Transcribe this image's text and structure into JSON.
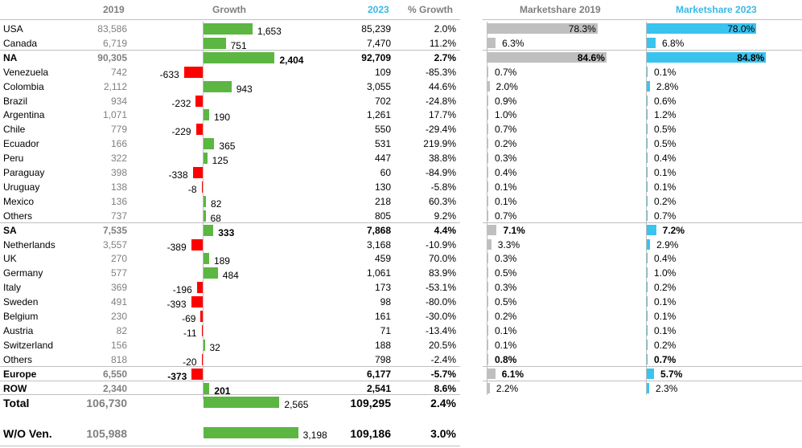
{
  "colors": {
    "positive": "#5bb642",
    "negative": "#ff0000",
    "ms2019": "#bfbfbf",
    "ms2023": "#39c3ef",
    "header_blue": "#39b8e6",
    "muted": "#7f7f7f"
  },
  "headers": {
    "y2019": "2019",
    "growth": "Growth",
    "y2023": "2023",
    "pct_growth": "% Growth",
    "ms2019": "Marketshare 2019",
    "ms2023": "Marketshare 2023"
  },
  "chart_data": {
    "type": "table",
    "columns": [
      "",
      "2019",
      "Growth",
      "2023",
      "% Growth",
      "Marketshare 2019",
      "Marketshare 2023"
    ],
    "rows": [
      {
        "name": "USA",
        "v2019": "83,586",
        "growth": 1653,
        "growth_label": "1,653",
        "v2023": "85,239",
        "pct": "2.0%",
        "ms2019": 78.3,
        "ms2019_label": "78.3%",
        "ms2023": 78.0,
        "ms2023_label": "78.0%"
      },
      {
        "name": "Canada",
        "v2019": "6,719",
        "growth": 751,
        "growth_label": "751",
        "v2023": "7,470",
        "pct": "11.2%",
        "ms2019": 6.3,
        "ms2019_label": "6.3%",
        "ms2023": 6.8,
        "ms2023_label": "6.8%"
      },
      {
        "name": "NA",
        "v2019": "90,305",
        "growth": 2404,
        "growth_label": "2,404",
        "v2023": "92,709",
        "pct": "2.7%",
        "ms2019": 84.6,
        "ms2019_label": "84.6%",
        "ms2023": 84.8,
        "ms2023_label": "84.8%",
        "bold": true,
        "sep": true
      },
      {
        "name": "Venezuela",
        "v2019": "742",
        "growth": -633,
        "growth_label": "-633",
        "v2023": "109",
        "pct": "-85.3%",
        "ms2019": 0.7,
        "ms2019_label": "0.7%",
        "ms2023": 0.1,
        "ms2023_label": "0.1%"
      },
      {
        "name": "Colombia",
        "v2019": "2,112",
        "growth": 943,
        "growth_label": "943",
        "v2023": "3,055",
        "pct": "44.6%",
        "ms2019": 2.0,
        "ms2019_label": "2.0%",
        "ms2023": 2.8,
        "ms2023_label": "2.8%"
      },
      {
        "name": "Brazil",
        "v2019": "934",
        "growth": -232,
        "growth_label": "-232",
        "v2023": "702",
        "pct": "-24.8%",
        "ms2019": 0.9,
        "ms2019_label": "0.9%",
        "ms2023": 0.6,
        "ms2023_label": "0.6%"
      },
      {
        "name": "Argentina",
        "v2019": "1,071",
        "growth": 190,
        "growth_label": "190",
        "v2023": "1,261",
        "pct": "17.7%",
        "ms2019": 1.0,
        "ms2019_label": "1.0%",
        "ms2023": 1.2,
        "ms2023_label": "1.2%"
      },
      {
        "name": "Chile",
        "v2019": "779",
        "growth": -229,
        "growth_label": "-229",
        "v2023": "550",
        "pct": "-29.4%",
        "ms2019": 0.7,
        "ms2019_label": "0.7%",
        "ms2023": 0.5,
        "ms2023_label": "0.5%"
      },
      {
        "name": "Ecuador",
        "v2019": "166",
        "growth": 365,
        "growth_label": "365",
        "v2023": "531",
        "pct": "219.9%",
        "ms2019": 0.2,
        "ms2019_label": "0.2%",
        "ms2023": 0.5,
        "ms2023_label": "0.5%"
      },
      {
        "name": "Peru",
        "v2019": "322",
        "growth": 125,
        "growth_label": "125",
        "v2023": "447",
        "pct": "38.8%",
        "ms2019": 0.3,
        "ms2019_label": "0.3%",
        "ms2023": 0.4,
        "ms2023_label": "0.4%"
      },
      {
        "name": "Paraguay",
        "v2019": "398",
        "growth": -338,
        "growth_label": "-338",
        "v2023": "60",
        "pct": "-84.9%",
        "ms2019": 0.4,
        "ms2019_label": "0.4%",
        "ms2023": 0.1,
        "ms2023_label": "0.1%"
      },
      {
        "name": "Uruguay",
        "v2019": "138",
        "growth": -8,
        "growth_label": "-8",
        "v2023": "130",
        "pct": "-5.8%",
        "ms2019": 0.1,
        "ms2019_label": "0.1%",
        "ms2023": 0.1,
        "ms2023_label": "0.1%"
      },
      {
        "name": "Mexico",
        "v2019": "136",
        "growth": 82,
        "growth_label": "82",
        "v2023": "218",
        "pct": "60.3%",
        "ms2019": 0.1,
        "ms2019_label": "0.1%",
        "ms2023": 0.2,
        "ms2023_label": "0.2%"
      },
      {
        "name": "Others",
        "v2019": "737",
        "growth": 68,
        "growth_label": "68",
        "v2023": "805",
        "pct": "9.2%",
        "ms2019": 0.7,
        "ms2019_label": "0.7%",
        "ms2023": 0.7,
        "ms2023_label": "0.7%"
      },
      {
        "name": "SA",
        "v2019": "7,535",
        "growth": 333,
        "growth_label": "333",
        "v2023": "7,868",
        "pct": "4.4%",
        "ms2019": 7.1,
        "ms2019_label": "7.1%",
        "ms2023": 7.2,
        "ms2023_label": "7.2%",
        "bold": true,
        "sep": true
      },
      {
        "name": "Netherlands",
        "v2019": "3,557",
        "growth": -389,
        "growth_label": "-389",
        "v2023": "3,168",
        "pct": "-10.9%",
        "ms2019": 3.3,
        "ms2019_label": "3.3%",
        "ms2023": 2.9,
        "ms2023_label": "2.9%"
      },
      {
        "name": "UK",
        "v2019": "270",
        "growth": 189,
        "growth_label": "189",
        "v2023": "459",
        "pct": "70.0%",
        "ms2019": 0.3,
        "ms2019_label": "0.3%",
        "ms2023": 0.4,
        "ms2023_label": "0.4%"
      },
      {
        "name": "Germany",
        "v2019": "577",
        "growth": 484,
        "growth_label": "484",
        "v2023": "1,061",
        "pct": "83.9%",
        "ms2019": 0.5,
        "ms2019_label": "0.5%",
        "ms2023": 1.0,
        "ms2023_label": "1.0%"
      },
      {
        "name": "Italy",
        "v2019": "369",
        "growth": -196,
        "growth_label": "-196",
        "v2023": "173",
        "pct": "-53.1%",
        "ms2019": 0.3,
        "ms2019_label": "0.3%",
        "ms2023": 0.2,
        "ms2023_label": "0.2%"
      },
      {
        "name": "Sweden",
        "v2019": "491",
        "growth": -393,
        "growth_label": "-393",
        "v2023": "98",
        "pct": "-80.0%",
        "ms2019": 0.5,
        "ms2019_label": "0.5%",
        "ms2023": 0.1,
        "ms2023_label": "0.1%"
      },
      {
        "name": "Belgium",
        "v2019": "230",
        "growth": -69,
        "growth_label": "-69",
        "v2023": "161",
        "pct": "-30.0%",
        "ms2019": 0.2,
        "ms2019_label": "0.2%",
        "ms2023": 0.1,
        "ms2023_label": "0.1%"
      },
      {
        "name": "Austria",
        "v2019": "82",
        "growth": -11,
        "growth_label": "-11",
        "v2023": "71",
        "pct": "-13.4%",
        "ms2019": 0.1,
        "ms2019_label": "0.1%",
        "ms2023": 0.1,
        "ms2023_label": "0.1%"
      },
      {
        "name": "Switzerland",
        "v2019": "156",
        "growth": 32,
        "growth_label": "32",
        "v2023": "188",
        "pct": "20.5%",
        "ms2019": 0.1,
        "ms2019_label": "0.1%",
        "ms2023": 0.2,
        "ms2023_label": "0.2%"
      },
      {
        "name": "Others",
        "v2019": "818",
        "growth": -20,
        "growth_label": "-20",
        "v2023": "798",
        "pct": "-2.4%",
        "ms2019": 0.8,
        "ms2019_label": "0.8%",
        "ms2023": 0.7,
        "ms2023_label": "0.7%",
        "ms_bold": true
      },
      {
        "name": "Europe",
        "v2019": "6,550",
        "growth": -373,
        "growth_label": "-373",
        "v2023": "6,177",
        "pct": "-5.7%",
        "ms2019": 6.1,
        "ms2019_label": "6.1%",
        "ms2023": 5.7,
        "ms2023_label": "5.7%",
        "bold": true,
        "sep": true
      },
      {
        "name": "ROW",
        "v2019": "2,340",
        "growth": 201,
        "growth_label": "201",
        "v2023": "2,541",
        "pct": "8.6%",
        "ms2019": 2.2,
        "ms2019_label": "2.2%",
        "ms2023": 2.3,
        "ms2023_label": "2.3%",
        "bold": true,
        "ms_normal": true,
        "sep": true
      },
      {
        "name": "Total",
        "v2019": "106,730",
        "growth": 2565,
        "growth_label": "2,565",
        "v2023": "109,295",
        "pct": "2.4%",
        "bold": true,
        "total": true,
        "no_ms": true,
        "sep": true
      },
      {
        "name": "W/O Ven.",
        "v2019": "105,988",
        "growth": 3198,
        "growth_label": "3,198",
        "v2023": "109,186",
        "pct": "3.0%",
        "bold": true,
        "total": true,
        "no_ms": true,
        "gap": true
      }
    ]
  }
}
